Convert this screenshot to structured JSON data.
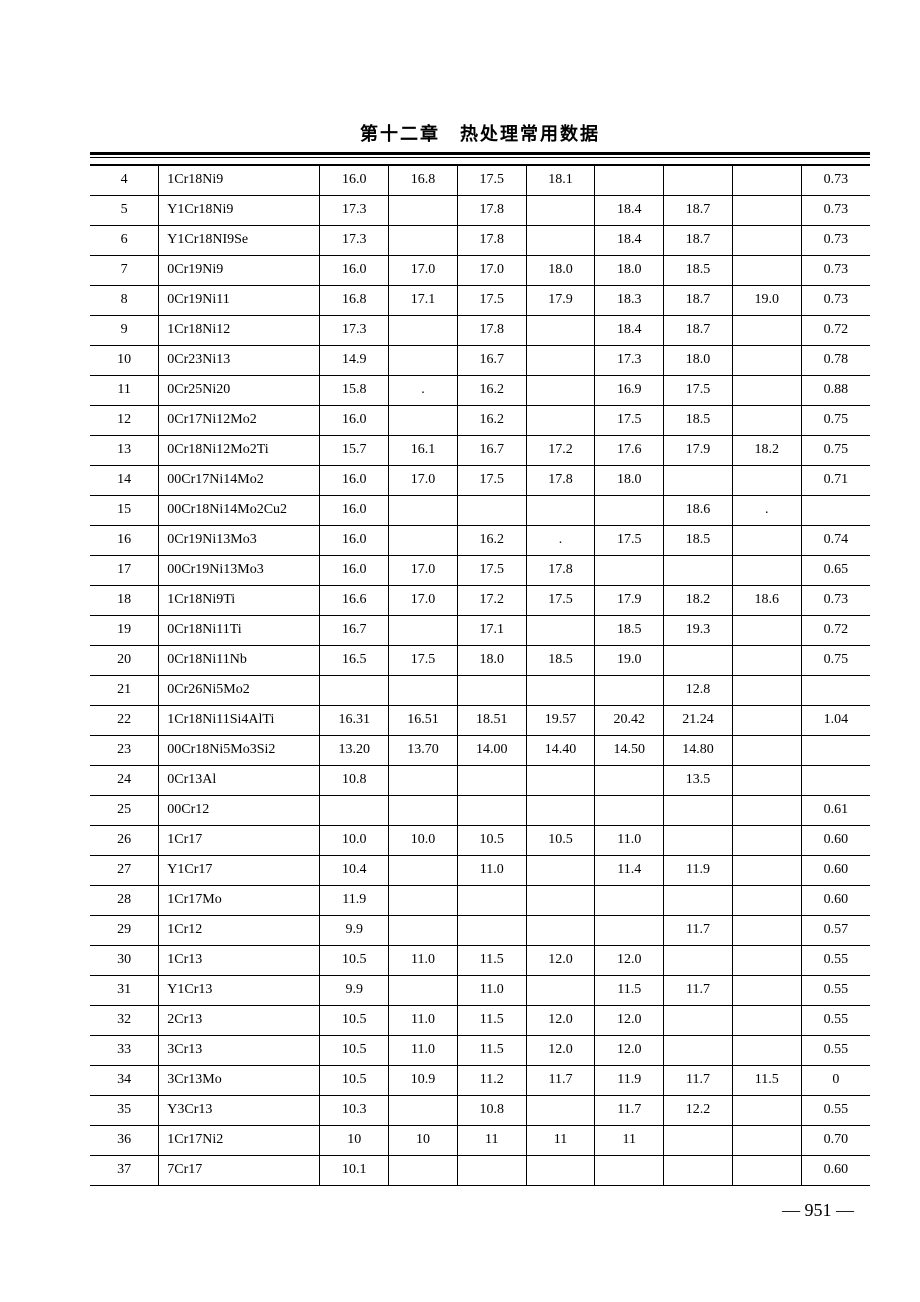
{
  "chapter_title": "第十二章　热处理常用数据",
  "page_number": "— 951 —",
  "columns": [
    "idx",
    "name",
    "c1",
    "c2",
    "c3",
    "c4",
    "c5",
    "c6",
    "c7",
    "c8"
  ],
  "rows": [
    {
      "idx": "4",
      "name": "1Cr18Ni9",
      "c1": "16.0",
      "c2": "16.8",
      "c3": "17.5",
      "c4": "18.1",
      "c5": "",
      "c6": "",
      "c7": "",
      "c8": "0.73"
    },
    {
      "idx": "5",
      "name": "Y1Cr18Ni9",
      "c1": "17.3",
      "c2": "",
      "c3": "17.8",
      "c4": "",
      "c5": "18.4",
      "c6": "18.7",
      "c7": "",
      "c8": "0.73"
    },
    {
      "idx": "6",
      "name": "Y1Cr18NI9Se",
      "c1": "17.3",
      "c2": "",
      "c3": "17.8",
      "c4": "",
      "c5": "18.4",
      "c6": "18.7",
      "c7": "",
      "c8": "0.73"
    },
    {
      "idx": "7",
      "name": "0Cr19Ni9",
      "c1": "16.0",
      "c2": "17.0",
      "c3": "17.0",
      "c4": "18.0",
      "c5": "18.0",
      "c6": "18.5",
      "c7": "",
      "c8": "0.73"
    },
    {
      "idx": "8",
      "name": "0Cr19Ni11",
      "c1": "16.8",
      "c2": "17.1",
      "c3": "17.5",
      "c4": "17.9",
      "c5": "18.3",
      "c6": "18.7",
      "c7": "19.0",
      "c8": "0.73"
    },
    {
      "idx": "9",
      "name": "1Cr18Ni12",
      "c1": "17.3",
      "c2": "",
      "c3": "17.8",
      "c4": "",
      "c5": "18.4",
      "c6": "18.7",
      "c7": "",
      "c8": "0.72"
    },
    {
      "idx": "10",
      "name": "0Cr23Ni13",
      "c1": "14.9",
      "c2": "",
      "c3": "16.7",
      "c4": "",
      "c5": "17.3",
      "c6": "18.0",
      "c7": "",
      "c8": "0.78"
    },
    {
      "idx": "11",
      "name": "0Cr25Ni20",
      "c1": "15.8",
      "c2": ".",
      "c3": "16.2",
      "c4": "",
      "c5": "16.9",
      "c6": "17.5",
      "c7": "",
      "c8": "0.88"
    },
    {
      "idx": "12",
      "name": "0Cr17Ni12Mo2",
      "c1": "16.0",
      "c2": "",
      "c3": "16.2",
      "c4": "",
      "c5": "17.5",
      "c6": "18.5",
      "c7": "",
      "c8": "0.75"
    },
    {
      "idx": "13",
      "name": "0Cr18Ni12Mo2Ti",
      "c1": "15.7",
      "c2": "16.1",
      "c3": "16.7",
      "c4": "17.2",
      "c5": "17.6",
      "c6": "17.9",
      "c7": "18.2",
      "c8": "0.75"
    },
    {
      "idx": "14",
      "name": "00Cr17Ni14Mo2",
      "c1": "16.0",
      "c2": "17.0",
      "c3": "17.5",
      "c4": "17.8",
      "c5": "18.0",
      "c6": "",
      "c7": "",
      "c8": "0.71"
    },
    {
      "idx": "15",
      "name": "00Cr18Ni14Mo2Cu2",
      "c1": "16.0",
      "c2": "",
      "c3": "",
      "c4": "",
      "c5": "",
      "c6": "18.6",
      "c7": ".",
      "c8": ""
    },
    {
      "idx": "16",
      "name": "0Cr19Ni13Mo3",
      "c1": "16.0",
      "c2": "",
      "c3": "16.2",
      "c4": ".",
      "c5": "17.5",
      "c6": "18.5",
      "c7": "",
      "c8": "0.74"
    },
    {
      "idx": "17",
      "name": "00Cr19Ni13Mo3",
      "c1": "16.0",
      "c2": "17.0",
      "c3": "17.5",
      "c4": "17.8",
      "c5": "",
      "c6": "",
      "c7": "",
      "c8": "0.65"
    },
    {
      "idx": "18",
      "name": "1Cr18Ni9Ti",
      "c1": "16.6",
      "c2": "17.0",
      "c3": "17.2",
      "c4": "17.5",
      "c5": "17.9",
      "c6": "18.2",
      "c7": "18.6",
      "c8": "0.73"
    },
    {
      "idx": "19",
      "name": "0Cr18Ni11Ti",
      "c1": "16.7",
      "c2": "",
      "c3": "17.1",
      "c4": "",
      "c5": "18.5",
      "c6": "19.3",
      "c7": "",
      "c8": "0.72"
    },
    {
      "idx": "20",
      "name": "0Cr18Ni11Nb",
      "c1": "16.5",
      "c2": "17.5",
      "c3": "18.0",
      "c4": "18.5",
      "c5": "19.0",
      "c6": "",
      "c7": "",
      "c8": "0.75"
    },
    {
      "idx": "21",
      "name": "0Cr26Ni5Mo2",
      "c1": "",
      "c2": "",
      "c3": "",
      "c4": "",
      "c5": "",
      "c6": "12.8",
      "c7": "",
      "c8": ""
    },
    {
      "idx": "22",
      "name": "1Cr18Ni11Si4AlTi",
      "c1": "16.31",
      "c2": "16.51",
      "c3": "18.51",
      "c4": "19.57",
      "c5": "20.42",
      "c6": "21.24",
      "c7": "",
      "c8": "1.04"
    },
    {
      "idx": "23",
      "name": "00Cr18Ni5Mo3Si2",
      "c1": "13.20",
      "c2": "13.70",
      "c3": "14.00",
      "c4": "14.40",
      "c5": "14.50",
      "c6": "14.80",
      "c7": "",
      "c8": ""
    },
    {
      "idx": "24",
      "name": "0Cr13Al",
      "c1": "10.8",
      "c2": "",
      "c3": "",
      "c4": "",
      "c5": "",
      "c6": "13.5",
      "c7": "",
      "c8": ""
    },
    {
      "idx": "25",
      "name": "00Cr12",
      "c1": "",
      "c2": "",
      "c3": "",
      "c4": "",
      "c5": "",
      "c6": "",
      "c7": "",
      "c8": "0.61"
    },
    {
      "idx": "26",
      "name": "1Cr17",
      "c1": "10.0",
      "c2": "10.0",
      "c3": "10.5",
      "c4": "10.5",
      "c5": "11.0",
      "c6": "",
      "c7": "",
      "c8": "0.60"
    },
    {
      "idx": "27",
      "name": "Y1Cr17",
      "c1": "10.4",
      "c2": "",
      "c3": "11.0",
      "c4": "",
      "c5": "11.4",
      "c6": "11.9",
      "c7": "",
      "c8": "0.60"
    },
    {
      "idx": "28",
      "name": "1Cr17Mo",
      "c1": "11.9",
      "c2": "",
      "c3": "",
      "c4": "",
      "c5": "",
      "c6": "",
      "c7": "",
      "c8": "0.60"
    },
    {
      "idx": "29",
      "name": "1Cr12",
      "c1": "9.9",
      "c2": "",
      "c3": "",
      "c4": "",
      "c5": "",
      "c6": "11.7",
      "c7": "",
      "c8": "0.57"
    },
    {
      "idx": "30",
      "name": "1Cr13",
      "c1": "10.5",
      "c2": "11.0",
      "c3": "11.5",
      "c4": "12.0",
      "c5": "12.0",
      "c6": "",
      "c7": "",
      "c8": "0.55"
    },
    {
      "idx": "31",
      "name": "Y1Cr13",
      "c1": "9.9",
      "c2": "",
      "c3": "11.0",
      "c4": "",
      "c5": "11.5",
      "c6": "11.7",
      "c7": "",
      "c8": "0.55"
    },
    {
      "idx": "32",
      "name": "2Cr13",
      "c1": "10.5",
      "c2": "11.0",
      "c3": "11.5",
      "c4": "12.0",
      "c5": "12.0",
      "c6": "",
      "c7": "",
      "c8": "0.55"
    },
    {
      "idx": "33",
      "name": "3Cr13",
      "c1": "10.5",
      "c2": "11.0",
      "c3": "11.5",
      "c4": "12.0",
      "c5": "12.0",
      "c6": "",
      "c7": "",
      "c8": "0.55"
    },
    {
      "idx": "34",
      "name": "3Cr13Mo",
      "c1": "10.5",
      "c2": "10.9",
      "c3": "11.2",
      "c4": "11.7",
      "c5": "11.9",
      "c6": "11.7",
      "c7": "11.5",
      "c8": "0"
    },
    {
      "idx": "35",
      "name": "Y3Cr13",
      "c1": "10.3",
      "c2": "",
      "c3": "10.8",
      "c4": "",
      "c5": "11.7",
      "c6": "12.2",
      "c7": "",
      "c8": "0.55"
    },
    {
      "idx": "36",
      "name": "1Cr17Ni2",
      "c1": "10",
      "c2": "10",
      "c3": "11",
      "c4": "11",
      "c5": "11",
      "c6": "",
      "c7": "",
      "c8": "0.70"
    },
    {
      "idx": "37",
      "name": "7Cr17",
      "c1": "10.1",
      "c2": "",
      "c3": "",
      "c4": "",
      "c5": "",
      "c6": "",
      "c7": "",
      "c8": "0.60"
    }
  ]
}
